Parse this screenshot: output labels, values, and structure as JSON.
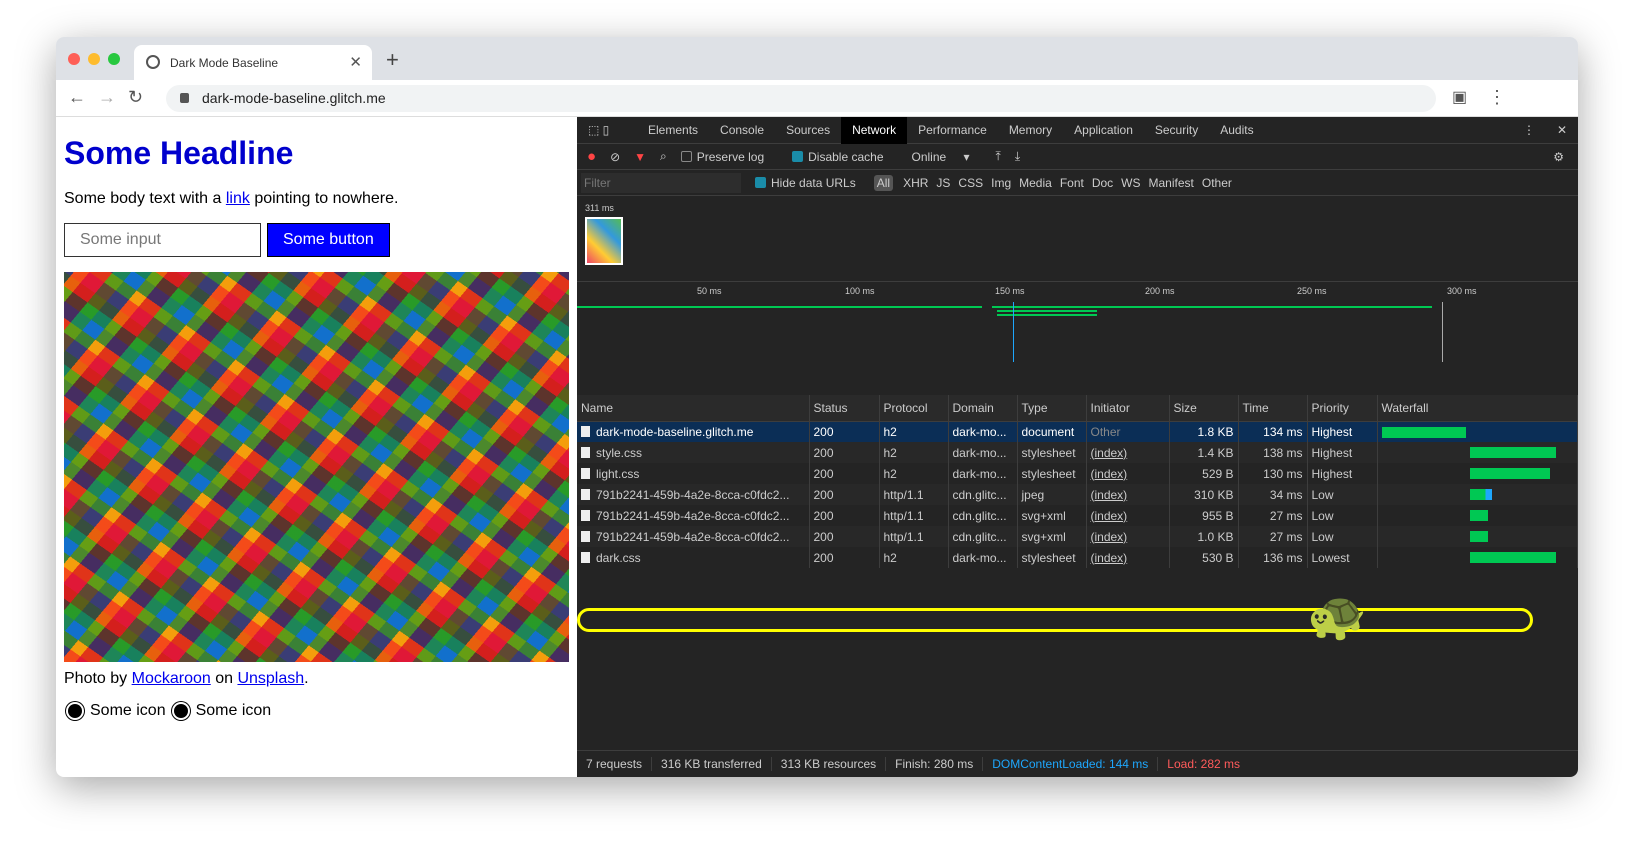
{
  "browser": {
    "tab_title": "Dark Mode Baseline",
    "url": "dark-mode-baseline.glitch.me"
  },
  "page": {
    "headline": "Some Headline",
    "body_before": "Some body text with a ",
    "body_link": "link",
    "body_after": " pointing to nowhere.",
    "input_placeholder": "Some input",
    "button": "Some button",
    "credit_prefix": "Photo by ",
    "credit_author": "Mockaroon",
    "credit_mid": " on ",
    "credit_site": "Unsplash",
    "credit_end": ".",
    "icon_label_1": "Some icon",
    "icon_label_2": "Some icon"
  },
  "devtools": {
    "tabs": [
      "Elements",
      "Console",
      "Sources",
      "Network",
      "Performance",
      "Memory",
      "Application",
      "Security",
      "Audits"
    ],
    "active_tab": "Network",
    "toolbar": {
      "preserve_log": "Preserve log",
      "disable_cache": "Disable cache",
      "throttle": "Online"
    },
    "filter": {
      "placeholder": "Filter",
      "hide_data_urls": "Hide data URLs",
      "types": [
        "All",
        "XHR",
        "JS",
        "CSS",
        "Img",
        "Media",
        "Font",
        "Doc",
        "WS",
        "Manifest",
        "Other"
      ]
    },
    "screenshot_time": "311 ms",
    "timeline_ticks": [
      "50 ms",
      "100 ms",
      "150 ms",
      "200 ms",
      "250 ms",
      "300 ms"
    ],
    "columns": [
      "Name",
      "Status",
      "Protocol",
      "Domain",
      "Type",
      "Initiator",
      "Size",
      "Time",
      "Priority",
      "Waterfall"
    ],
    "rows": [
      {
        "name": "dark-mode-baseline.glitch.me",
        "status": "200",
        "protocol": "h2",
        "domain": "dark-mo...",
        "type": "document",
        "initiator": "Other",
        "size": "1.8 KB",
        "time": "134 ms",
        "priority": "Highest"
      },
      {
        "name": "style.css",
        "status": "200",
        "protocol": "h2",
        "domain": "dark-mo...",
        "type": "stylesheet",
        "initiator": "(index)",
        "size": "1.4 KB",
        "time": "138 ms",
        "priority": "Highest"
      },
      {
        "name": "light.css",
        "status": "200",
        "protocol": "h2",
        "domain": "dark-mo...",
        "type": "stylesheet",
        "initiator": "(index)",
        "size": "529 B",
        "time": "130 ms",
        "priority": "Highest"
      },
      {
        "name": "791b2241-459b-4a2e-8cca-c0fdc2...",
        "status": "200",
        "protocol": "http/1.1",
        "domain": "cdn.glitc...",
        "type": "jpeg",
        "initiator": "(index)",
        "size": "310 KB",
        "time": "34 ms",
        "priority": "Low"
      },
      {
        "name": "791b2241-459b-4a2e-8cca-c0fdc2...",
        "status": "200",
        "protocol": "http/1.1",
        "domain": "cdn.glitc...",
        "type": "svg+xml",
        "initiator": "(index)",
        "size": "955 B",
        "time": "27 ms",
        "priority": "Low"
      },
      {
        "name": "791b2241-459b-4a2e-8cca-c0fdc2...",
        "status": "200",
        "protocol": "http/1.1",
        "domain": "cdn.glitc...",
        "type": "svg+xml",
        "initiator": "(index)",
        "size": "1.0 KB",
        "time": "27 ms",
        "priority": "Low"
      },
      {
        "name": "dark.css",
        "status": "200",
        "protocol": "h2",
        "domain": "dark-mo...",
        "type": "stylesheet",
        "initiator": "(index)",
        "size": "530 B",
        "time": "136 ms",
        "priority": "Lowest"
      }
    ],
    "status": {
      "requests": "7 requests",
      "transferred": "316 KB transferred",
      "resources": "313 KB resources",
      "finish": "Finish: 280 ms",
      "dcl": "DOMContentLoaded: 144 ms",
      "load": "Load: 282 ms"
    },
    "colors": {
      "dcl": "#1ea7fd",
      "load": "#ff5b5b",
      "bar": "#00c853",
      "highlight": "#ffff00"
    }
  }
}
